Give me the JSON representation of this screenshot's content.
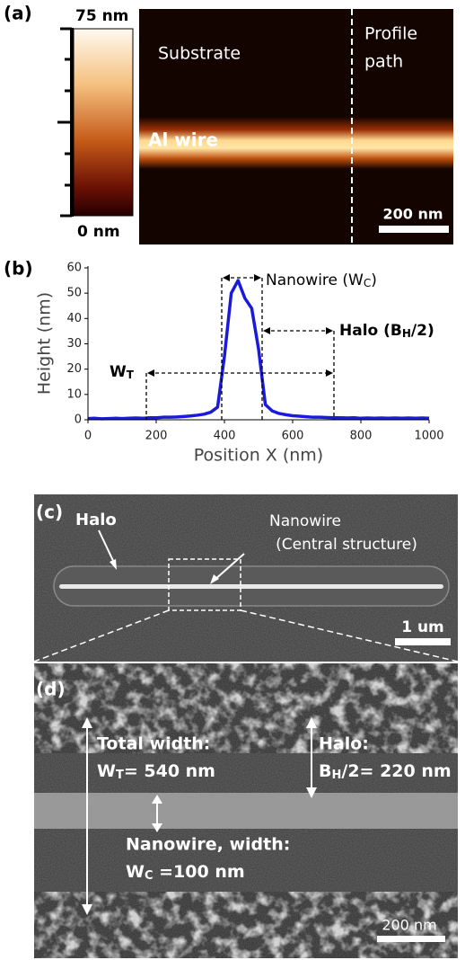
{
  "panel_a": {
    "label": "(a)",
    "colorbar_max": "75 nm",
    "colorbar_min": "0 nm",
    "substrate": "Substrate",
    "profile_1": "Profile",
    "profile_2": "path",
    "wire": "Al wire",
    "scale_bar": "200 nm"
  },
  "chart_data": {
    "type": "line",
    "label": "(b)",
    "xlabel": "Position X (nm)",
    "ylabel": "Height (nm)",
    "x": [
      0,
      20,
      40,
      60,
      80,
      100,
      120,
      140,
      160,
      180,
      200,
      220,
      240,
      260,
      280,
      300,
      320,
      340,
      360,
      380,
      400,
      420,
      440,
      460,
      480,
      500,
      520,
      540,
      560,
      580,
      600,
      620,
      640,
      660,
      680,
      700,
      720,
      740,
      760,
      780,
      800,
      820,
      840,
      860,
      880,
      900,
      920,
      940,
      960,
      980,
      1000
    ],
    "values": [
      0.5,
      0.6,
      0.4,
      0.5,
      0.6,
      0.5,
      0.6,
      0.7,
      0.6,
      0.8,
      0.8,
      1,
      1,
      1.1,
      1.3,
      1.5,
      1.8,
      2.2,
      3,
      5,
      25,
      50,
      55,
      48,
      44,
      28,
      6,
      3.5,
      2.5,
      2,
      1.6,
      1.4,
      1.2,
      1,
      1,
      0.9,
      0.8,
      0.8,
      0.7,
      0.8,
      0.6,
      0.7,
      0.6,
      0.7,
      0.6,
      0.7,
      0.6,
      0.7,
      0.6,
      0.7,
      0.6
    ],
    "color": "#1a1adc",
    "xlim": [
      0,
      1000
    ],
    "ylim": [
      0,
      60
    ],
    "xticks": [
      0,
      200,
      400,
      600,
      800,
      1000
    ],
    "yticks": [
      0,
      10,
      20,
      30,
      40,
      50,
      60
    ],
    "annotations": [
      {
        "text": "Nanowire (W",
        "sub": "C",
        "tail": ")"
      },
      {
        "text": "Halo (B",
        "sub": "H",
        "tail": "/2)"
      },
      {
        "text": "W",
        "sub": "T",
        "tail": ""
      }
    ]
  },
  "panel_c": {
    "label": "(c)",
    "halo": "Halo",
    "nanowire_1": "Nanowire",
    "nanowire_2": "(Central structure)",
    "scale_bar": "1 um"
  },
  "panel_d": {
    "label": "(d)",
    "total_title": "Total width:",
    "total": {
      "text": "W",
      "sub": "T",
      "tail": "= 540 nm"
    },
    "halo_title": "Halo:",
    "halo": {
      "text": "B",
      "sub": "H",
      "tail": "/2= 220 nm"
    },
    "wire_title": "Nanowire, width:",
    "wire": {
      "text": "W",
      "sub": "C",
      "tail": " =100 nm"
    },
    "scale_bar": "200 nm"
  }
}
